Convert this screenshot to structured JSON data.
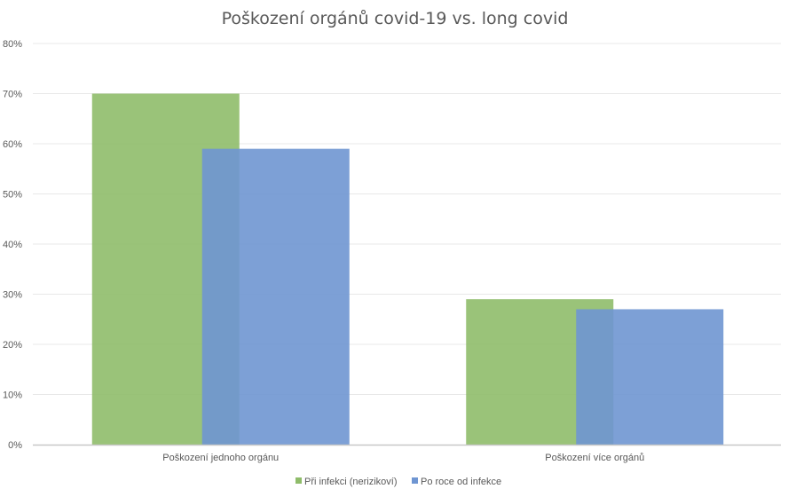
{
  "chart_data": {
    "type": "bar",
    "title": "Poškození orgánů covid-19 vs. long covid",
    "categories": [
      "Poškození jednoho orgánu",
      "Poškození více orgánů"
    ],
    "series": [
      {
        "name": "Při infekci (nerizikoví)",
        "values": [
          70,
          29
        ],
        "color": "#8fbc6a"
      },
      {
        "name": "Po roce od infekce",
        "values": [
          59,
          27
        ],
        "color": "#6f96d2"
      }
    ],
    "ylim": [
      0,
      80
    ],
    "yticks": [
      0,
      10,
      20,
      30,
      40,
      50,
      60,
      70,
      80
    ],
    "ytick_labels": [
      "0%",
      "10%",
      "20%",
      "30%",
      "40%",
      "50%",
      "60%",
      "70%",
      "80%"
    ],
    "xlabel": "",
    "ylabel": "",
    "grid": true,
    "legend_position": "bottom",
    "overlap": true
  }
}
